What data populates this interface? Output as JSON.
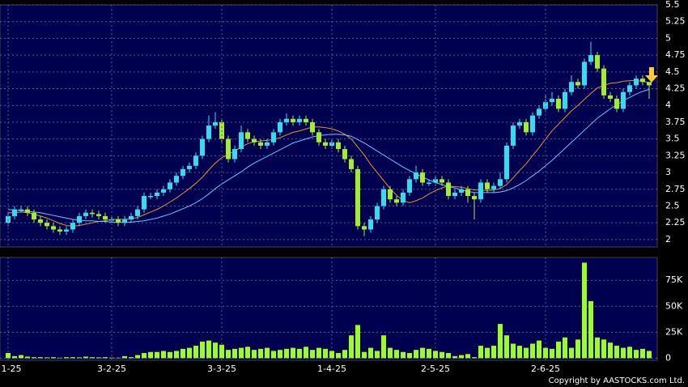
{
  "chart_data": [
    {
      "type": "candlestick",
      "open": [
        2.25,
        2.35,
        2.45,
        2.45,
        2.4,
        2.3,
        2.25,
        2.2,
        2.15,
        2.12,
        2.15,
        2.25,
        2.35,
        2.4,
        2.38,
        2.35,
        2.3,
        2.3,
        2.25,
        2.3,
        2.35,
        2.45,
        2.65,
        2.65,
        2.7,
        2.75,
        2.85,
        2.95,
        3.05,
        3.1,
        3.25,
        3.5,
        3.7,
        3.75,
        3.5,
        3.2,
        3.35,
        3.6,
        3.5,
        3.45,
        3.4,
        3.45,
        3.6,
        3.75,
        3.8,
        3.75,
        3.8,
        3.75,
        3.6,
        3.45,
        3.4,
        3.45,
        3.35,
        3.2,
        3.05,
        2.2,
        2.15,
        2.3,
        2.5,
        2.75,
        2.6,
        2.55,
        2.7,
        2.9,
        3.0,
        2.85,
        2.85,
        2.9,
        2.85,
        2.65,
        2.7,
        2.75,
        2.65,
        2.6,
        2.85,
        2.75,
        2.8,
        2.9,
        3.4,
        3.7,
        3.75,
        3.6,
        3.85,
        3.95,
        4.05,
        4.1,
        3.95,
        4.2,
        4.35,
        4.3,
        4.65,
        4.75,
        4.55,
        4.15,
        4.1,
        3.95,
        4.2,
        4.3,
        4.4,
        4.35
      ],
      "high": [
        2.4,
        2.5,
        2.5,
        2.5,
        2.45,
        2.35,
        2.3,
        2.25,
        2.2,
        2.2,
        2.3,
        2.4,
        2.45,
        2.45,
        2.43,
        2.4,
        2.35,
        2.35,
        2.35,
        2.4,
        2.5,
        2.7,
        2.7,
        2.75,
        2.8,
        2.9,
        3.0,
        3.1,
        3.15,
        3.3,
        3.55,
        3.85,
        3.9,
        3.8,
        3.55,
        3.4,
        3.7,
        3.65,
        3.55,
        3.5,
        3.5,
        3.65,
        3.8,
        3.88,
        3.85,
        3.85,
        3.85,
        3.8,
        3.65,
        3.5,
        3.5,
        3.5,
        3.4,
        3.25,
        3.1,
        2.25,
        2.35,
        2.55,
        2.8,
        2.8,
        2.65,
        2.75,
        2.95,
        3.1,
        3.05,
        2.9,
        2.95,
        2.95,
        2.9,
        2.75,
        2.8,
        2.8,
        2.7,
        2.9,
        2.9,
        2.85,
        3.0,
        3.45,
        3.75,
        3.8,
        3.8,
        3.9,
        4.0,
        4.15,
        4.2,
        4.15,
        4.25,
        4.45,
        4.4,
        4.7,
        4.95,
        4.8,
        4.6,
        4.2,
        4.15,
        4.25,
        4.35,
        4.45,
        4.45,
        4.35
      ],
      "low": [
        2.2,
        2.3,
        2.4,
        2.35,
        2.25,
        2.2,
        2.15,
        2.1,
        2.07,
        2.07,
        2.1,
        2.2,
        2.3,
        2.33,
        2.3,
        2.25,
        2.25,
        2.2,
        2.2,
        2.25,
        2.3,
        2.4,
        2.6,
        2.6,
        2.65,
        2.7,
        2.8,
        2.9,
        3.0,
        3.05,
        3.2,
        3.45,
        3.65,
        3.45,
        3.15,
        3.15,
        3.3,
        3.45,
        3.4,
        3.35,
        3.35,
        3.4,
        3.55,
        3.7,
        3.7,
        3.7,
        3.7,
        3.55,
        3.4,
        3.35,
        3.35,
        3.3,
        3.15,
        3.0,
        2.15,
        2.05,
        2.1,
        2.25,
        2.45,
        2.55,
        2.5,
        2.5,
        2.65,
        2.85,
        2.8,
        2.8,
        2.8,
        2.8,
        2.6,
        2.6,
        2.65,
        2.55,
        2.3,
        2.55,
        2.7,
        2.7,
        2.75,
        2.85,
        3.35,
        3.65,
        3.55,
        3.55,
        3.8,
        3.9,
        4.0,
        3.9,
        3.9,
        4.15,
        4.25,
        4.25,
        4.6,
        4.5,
        4.1,
        4.05,
        3.9,
        3.9,
        4.15,
        4.25,
        4.3,
        4.1
      ],
      "close": [
        2.35,
        2.45,
        2.45,
        2.4,
        2.3,
        2.25,
        2.2,
        2.15,
        2.12,
        2.15,
        2.25,
        2.35,
        2.4,
        2.38,
        2.35,
        2.3,
        2.3,
        2.25,
        2.3,
        2.35,
        2.45,
        2.65,
        2.65,
        2.7,
        2.75,
        2.85,
        2.95,
        3.05,
        3.1,
        3.25,
        3.5,
        3.7,
        3.75,
        3.5,
        3.2,
        3.35,
        3.6,
        3.5,
        3.45,
        3.4,
        3.45,
        3.6,
        3.75,
        3.8,
        3.75,
        3.8,
        3.75,
        3.6,
        3.45,
        3.4,
        3.45,
        3.35,
        3.2,
        3.05,
        2.2,
        2.15,
        2.3,
        2.5,
        2.75,
        2.6,
        2.55,
        2.7,
        2.9,
        3.0,
        2.85,
        2.85,
        2.9,
        2.85,
        2.65,
        2.7,
        2.75,
        2.65,
        2.6,
        2.85,
        2.75,
        2.8,
        2.9,
        3.4,
        3.7,
        3.75,
        3.6,
        3.85,
        3.95,
        4.05,
        4.1,
        3.95,
        4.2,
        4.35,
        4.3,
        4.65,
        4.75,
        4.55,
        4.15,
        4.1,
        3.95,
        4.2,
        4.3,
        4.4,
        4.35,
        4.3
      ],
      "up_color": "#33ddf0",
      "down_color": "#9fef2f",
      "lines": [
        {
          "color": "#f0902a",
          "values": [
            2.4,
            2.4,
            2.41,
            2.4,
            2.38,
            2.35,
            2.32,
            2.28,
            2.24,
            2.21,
            2.2,
            2.21,
            2.23,
            2.25,
            2.27,
            2.28,
            2.3,
            2.3,
            2.3,
            2.31,
            2.33,
            2.37,
            2.41,
            2.45,
            2.5,
            2.56,
            2.62,
            2.69,
            2.76,
            2.84,
            2.93,
            3.04,
            3.14,
            3.22,
            3.27,
            3.32,
            3.38,
            3.43,
            3.46,
            3.47,
            3.48,
            3.49,
            3.52,
            3.56,
            3.6,
            3.62,
            3.65,
            3.68,
            3.68,
            3.67,
            3.65,
            3.62,
            3.57,
            3.5,
            3.38,
            3.26,
            3.12,
            3.0,
            2.88,
            2.76,
            2.66,
            2.58,
            2.55,
            2.58,
            2.62,
            2.68,
            2.73,
            2.77,
            2.8,
            2.79,
            2.78,
            2.76,
            2.74,
            2.74,
            2.73,
            2.74,
            2.76,
            2.82,
            2.92,
            3.03,
            3.13,
            3.25,
            3.37,
            3.5,
            3.62,
            3.72,
            3.82,
            3.92,
            4.0,
            4.09,
            4.18,
            4.26,
            4.3,
            4.33,
            4.34,
            4.36,
            4.37,
            4.37,
            4.36,
            4.34
          ]
        },
        {
          "color": "#66c8ff",
          "values": [
            2.45,
            2.44,
            2.43,
            2.42,
            2.41,
            2.4,
            2.38,
            2.36,
            2.34,
            2.32,
            2.3,
            2.29,
            2.28,
            2.28,
            2.27,
            2.27,
            2.26,
            2.26,
            2.26,
            2.26,
            2.27,
            2.28,
            2.3,
            2.32,
            2.35,
            2.38,
            2.42,
            2.46,
            2.5,
            2.55,
            2.61,
            2.68,
            2.76,
            2.83,
            2.89,
            2.95,
            3.01,
            3.08,
            3.14,
            3.19,
            3.24,
            3.29,
            3.34,
            3.39,
            3.44,
            3.47,
            3.5,
            3.53,
            3.55,
            3.56,
            3.57,
            3.57,
            3.56,
            3.54,
            3.49,
            3.44,
            3.38,
            3.32,
            3.26,
            3.2,
            3.14,
            3.08,
            3.03,
            2.98,
            2.93,
            2.89,
            2.85,
            2.82,
            2.79,
            2.77,
            2.74,
            2.72,
            2.7,
            2.7,
            2.7,
            2.7,
            2.71,
            2.73,
            2.77,
            2.82,
            2.88,
            2.95,
            3.02,
            3.1,
            3.18,
            3.27,
            3.36,
            3.45,
            3.54,
            3.63,
            3.72,
            3.81,
            3.88,
            3.95,
            4.01,
            4.07,
            4.12,
            4.17,
            4.21,
            4.24
          ]
        }
      ],
      "ylim": [
        1.89,
        5.5
      ],
      "yticks": [
        2,
        2.25,
        2.5,
        2.75,
        3,
        3.25,
        3.5,
        3.75,
        4,
        4.25,
        4.5,
        4.75,
        5,
        5.25,
        5.5
      ],
      "grid": true
    },
    {
      "type": "bar",
      "categories": [
        "1-25",
        null,
        null,
        null,
        null,
        null,
        null,
        null,
        null,
        null,
        null,
        null,
        null,
        null,
        null,
        null,
        "3-2-25",
        null,
        null,
        null,
        null,
        null,
        null,
        null,
        null,
        null,
        null,
        null,
        null,
        null,
        null,
        null,
        null,
        "3-3-25",
        null,
        null,
        null,
        null,
        null,
        null,
        null,
        null,
        null,
        null,
        null,
        null,
        null,
        null,
        null,
        null,
        "1-4-25",
        null,
        null,
        null,
        null,
        null,
        null,
        null,
        null,
        null,
        null,
        null,
        null,
        null,
        null,
        null,
        "2-5-25",
        null,
        null,
        null,
        null,
        null,
        null,
        null,
        null,
        null,
        null,
        null,
        null,
        null,
        null,
        null,
        null,
        "2-6-25",
        null,
        null,
        null,
        null,
        null,
        null,
        null,
        null,
        null,
        null,
        null,
        null,
        null,
        null,
        null,
        null
      ],
      "values": [
        5000,
        2000,
        3000,
        1500,
        1000,
        1000,
        800,
        1000,
        500,
        1000,
        1000,
        800,
        1500,
        1000,
        800,
        1000,
        600,
        500,
        2000,
        1000,
        3000,
        5000,
        6000,
        6000,
        7000,
        6000,
        7000,
        9000,
        10000,
        12000,
        16000,
        17000,
        15000,
        13000,
        8000,
        9000,
        10000,
        11000,
        8000,
        9000,
        10000,
        7000,
        8000,
        9000,
        10000,
        9000,
        11000,
        8000,
        10000,
        9000,
        7000,
        5000,
        8000,
        22000,
        32000,
        6000,
        10000,
        7000,
        22000,
        10000,
        8000,
        6000,
        5000,
        8000,
        10000,
        9000,
        7000,
        6000,
        5000,
        2000,
        3000,
        4000,
        1000,
        12000,
        10000,
        12000,
        33000,
        22000,
        14000,
        12000,
        10000,
        14000,
        17000,
        10000,
        9000,
        16000,
        20000,
        10000,
        18000,
        92000,
        55000,
        20000,
        18000,
        15000,
        12000,
        10000,
        11000,
        8000,
        9000,
        7000
      ],
      "color": "#99ff22",
      "ylim": [
        -2000,
        97000
      ],
      "yticks": [
        0,
        {
          "value": 25000,
          "label": "25K"
        },
        {
          "value": 50000,
          "label": "50K"
        },
        {
          "value": 75000,
          "label": "75K"
        }
      ],
      "grid": true
    }
  ],
  "footer": "Copyright by AASTOCKS.com Ltd."
}
